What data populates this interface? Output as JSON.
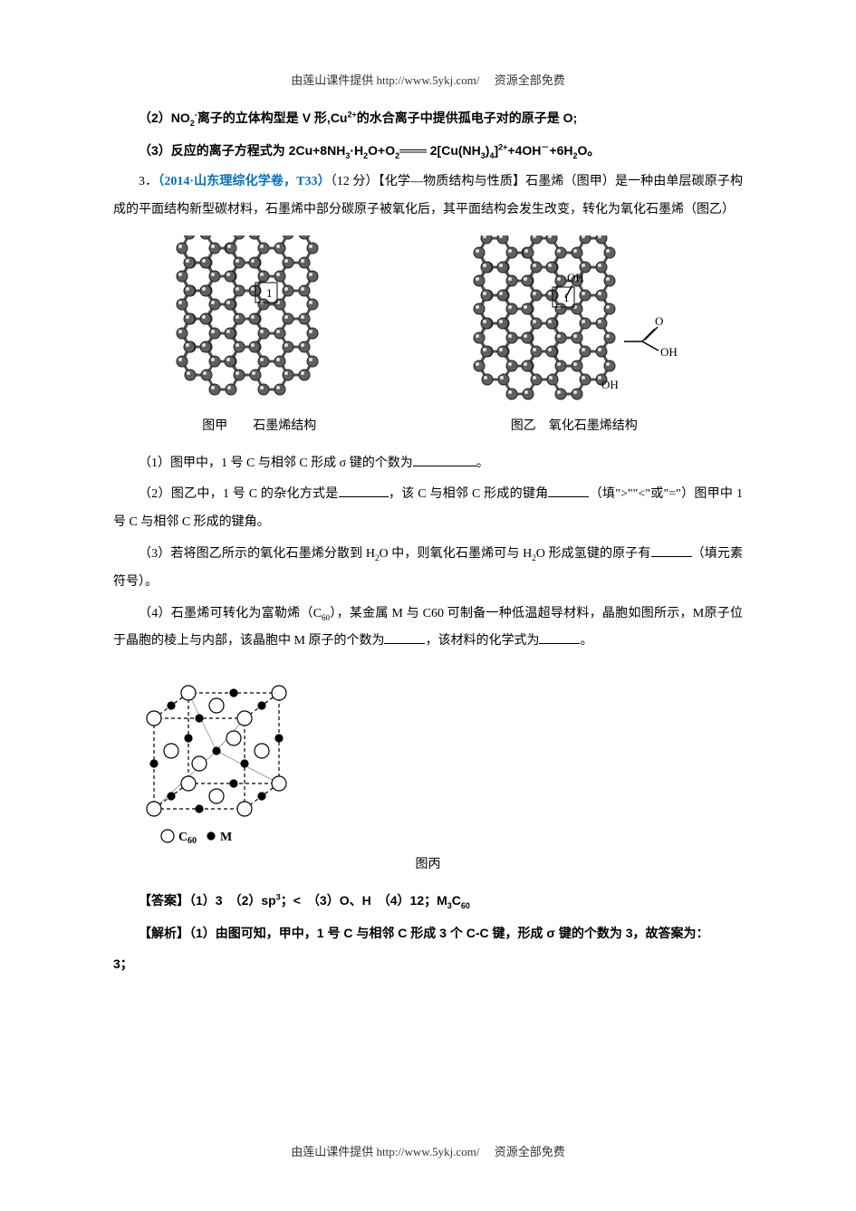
{
  "header": {
    "prefix": "由莲山课件提供",
    "url": "http://www.5ykj.com/",
    "suffix": "资源全部免费"
  },
  "footer": {
    "prefix": "由莲山课件提供",
    "url": "http://www.5ykj.com/",
    "suffix": "资源全部免费"
  },
  "p2": {
    "label": "（2）",
    "text_a": "NO",
    "sub1": "2",
    "sup1": "-",
    "text_b": "离子的立体构型是 V 形,Cu",
    "sup2": "2+",
    "text_c": "的水合离子中提供孤电子对的原子是 O;"
  },
  "p3": {
    "label": "（3）",
    "text_a": "反应的离子方程式为 2Cu+8NH",
    "sub1": "3",
    "text_b": "·H",
    "sub2": "2",
    "text_c": "O+O",
    "sub3": "2",
    "text_d": "═══ 2[Cu(NH",
    "sub4": "3",
    "text_e": ")",
    "sub5": "4",
    "text_f": "]",
    "sup1": "2+",
    "text_g": "+4OH",
    "sup2": "－",
    "text_h": "+6H",
    "sub6": "2",
    "text_i": "O。"
  },
  "q3": {
    "num": "3．",
    "source": "（2014·山东理综化学卷，T33）",
    "points": "（12 分）",
    "bracket": "【化学—物质结构与性质】",
    "intro": "石墨烯（图甲）是一种由单层碳原子构成的平面结构新型碳材料，石墨烯中部分碳原子被氧化后，其平面结构会发生改变，转化为氧化石墨烯（图乙）"
  },
  "caption_a": "图甲　　石墨烯结构",
  "caption_b": "图乙　氧化石墨烯结构",
  "sub1": {
    "label": "（1）",
    "text_a": "图甲中，1 号 C 与相邻 C 形成 σ 键的个数为",
    "text_b": "。"
  },
  "sub2": {
    "label": "（2）",
    "text_a": "图乙中，1 号 C 的杂化方式是",
    "text_b": "，该 C 与相邻 C 形成的键角",
    "text_c": "（填\">\"\"<\"或\"=\"）图甲中 1 号 C 与相邻 C 形成的键角。"
  },
  "sub3": {
    "label": "（3）",
    "text_a": "若将图乙所示的氧化石墨烯分散到 H",
    "sub_a": "2",
    "text_b": "O 中，则氧化石墨烯可与 H",
    "sub_b": "2",
    "text_c": "O 形成氢键的原子有",
    "text_d": "（填元素符号）。"
  },
  "sub4": {
    "label": "（4）",
    "text_a": "石墨烯可转化为富勒烯（C",
    "sub_a": "60",
    "text_b": "），某金属 M 与 C60 可制备一种低温超导材料，晶胞如图所示，M原子位于晶胞的棱上与内部，该晶胞中 M 原子的个数为",
    "text_c": "，该材料的化学式为",
    "text_d": "。"
  },
  "legend": {
    "c60": "C",
    "c60sub": "60",
    "m": "M"
  },
  "caption_c": "图丙",
  "answer": {
    "label": "【答案】",
    "a1": "（1）",
    "v1": "3　",
    "a2": "（2）",
    "v2a": "sp",
    "v2sup": "3",
    "v2b": "；<　",
    "a3": "（3）",
    "v3": "O、H　",
    "a4": "（4）",
    "v4a": "12；",
    "v4b": "M",
    "v4sub1": "3",
    "v4c": "C",
    "v4sub2": "60"
  },
  "analysis": {
    "label": "【解析】",
    "a1": "（1）",
    "text": "由图可知，甲中，1 号 C 与相邻 C 形成 3 个 C-C 键，形成 σ 键的个数为 3，故答案为：",
    "cont": "3；"
  },
  "colors": {
    "text": "#000000",
    "blue": "#0070c0",
    "bg": "#ffffff",
    "atom": "#606060",
    "atom_light": "#ffffff",
    "bond": "#505050"
  }
}
